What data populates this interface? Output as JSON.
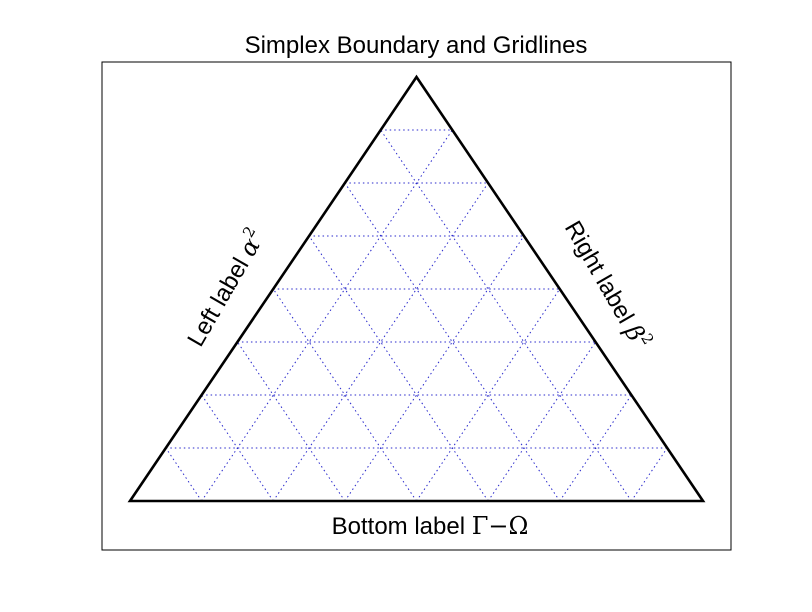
{
  "chart_data": {
    "type": "ternary",
    "title": "Simplex Boundary and Gridlines",
    "labels": {
      "bottom": {
        "text": "Bottom label ",
        "math": [
          "Γ",
          "−",
          "Ω"
        ]
      },
      "left": {
        "text": "Left label ",
        "math_base": "α",
        "math_sup": "2"
      },
      "right": {
        "text": "Right label ",
        "math_base": "β",
        "math_sup": "2"
      }
    },
    "scale": 8,
    "gridlines": {
      "visible": true,
      "style": "dotted",
      "color": "#2a2acc"
    },
    "boundary": {
      "color": "#000000"
    }
  }
}
